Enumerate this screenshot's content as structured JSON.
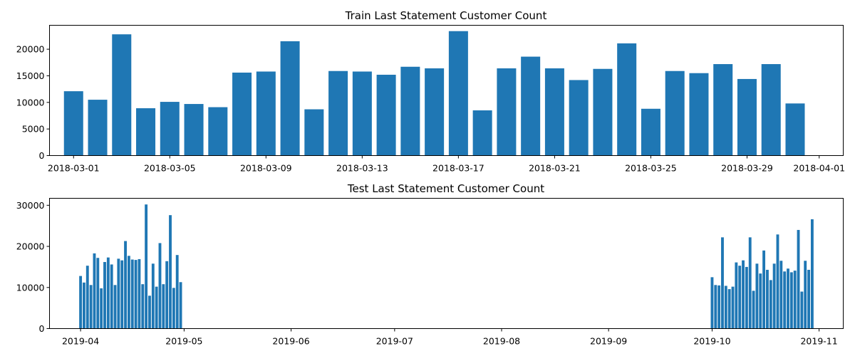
{
  "chart_data": [
    {
      "type": "bar",
      "title": "Train Last Statement Customer Count",
      "xlabel": "",
      "ylabel": "",
      "x_type": "date",
      "xlim": [
        "2018-02-28",
        "2018-04-02"
      ],
      "ylim": [
        0,
        24500
      ],
      "xticks": [
        "2018-03-01",
        "2018-03-05",
        "2018-03-09",
        "2018-03-13",
        "2018-03-17",
        "2018-03-21",
        "2018-03-25",
        "2018-03-29",
        "2018-04-01"
      ],
      "yticks": [
        0,
        5000,
        10000,
        15000,
        20000
      ],
      "x": [
        "2018-03-01",
        "2018-03-02",
        "2018-03-03",
        "2018-03-04",
        "2018-03-05",
        "2018-03-06",
        "2018-03-07",
        "2018-03-08",
        "2018-03-09",
        "2018-03-10",
        "2018-03-11",
        "2018-03-12",
        "2018-03-13",
        "2018-03-14",
        "2018-03-15",
        "2018-03-16",
        "2018-03-17",
        "2018-03-18",
        "2018-03-19",
        "2018-03-20",
        "2018-03-21",
        "2018-03-22",
        "2018-03-23",
        "2018-03-24",
        "2018-03-25",
        "2018-03-26",
        "2018-03-27",
        "2018-03-28",
        "2018-03-29",
        "2018-03-30",
        "2018-03-31"
      ],
      "values": [
        12100,
        10500,
        22800,
        8900,
        10100,
        9700,
        9100,
        15600,
        15800,
        21500,
        8700,
        15900,
        15800,
        15200,
        16700,
        16400,
        23400,
        8500,
        16400,
        18600,
        16400,
        14200,
        16300,
        21100,
        8800,
        15900,
        15500,
        17200,
        14400,
        17200,
        9800
      ],
      "grid": false
    },
    {
      "type": "bar",
      "title": "Test Last Statement Customer Count",
      "xlabel": "",
      "ylabel": "",
      "x_type": "date",
      "xlim": [
        "2019-03-23",
        "2019-11-08"
      ],
      "ylim": [
        0,
        31700
      ],
      "xticks": [
        "2019-04",
        "2019-05",
        "2019-06",
        "2019-07",
        "2019-08",
        "2019-09",
        "2019-10",
        "2019-11"
      ],
      "yticks": [
        0,
        10000,
        20000,
        30000
      ],
      "x": [
        "2019-04-01",
        "2019-04-02",
        "2019-04-03",
        "2019-04-04",
        "2019-04-05",
        "2019-04-06",
        "2019-04-07",
        "2019-04-08",
        "2019-04-09",
        "2019-04-10",
        "2019-04-11",
        "2019-04-12",
        "2019-04-13",
        "2019-04-14",
        "2019-04-15",
        "2019-04-16",
        "2019-04-17",
        "2019-04-18",
        "2019-04-19",
        "2019-04-20",
        "2019-04-21",
        "2019-04-22",
        "2019-04-23",
        "2019-04-24",
        "2019-04-25",
        "2019-04-26",
        "2019-04-27",
        "2019-04-28",
        "2019-04-29",
        "2019-04-30",
        "2019-10-01",
        "2019-10-02",
        "2019-10-03",
        "2019-10-04",
        "2019-10-05",
        "2019-10-06",
        "2019-10-07",
        "2019-10-08",
        "2019-10-09",
        "2019-10-10",
        "2019-10-11",
        "2019-10-12",
        "2019-10-13",
        "2019-10-14",
        "2019-10-15",
        "2019-10-16",
        "2019-10-17",
        "2019-10-18",
        "2019-10-19",
        "2019-10-20",
        "2019-10-21",
        "2019-10-22",
        "2019-10-23",
        "2019-10-24",
        "2019-10-25",
        "2019-10-26",
        "2019-10-27",
        "2019-10-28",
        "2019-10-29",
        "2019-10-30",
        "2019-10-31"
      ],
      "values": [
        12800,
        11200,
        15300,
        10600,
        18300,
        17200,
        9800,
        16200,
        17300,
        15600,
        10600,
        17000,
        16600,
        21300,
        17700,
        16800,
        16700,
        16900,
        10800,
        30200,
        8000,
        15800,
        10200,
        20800,
        10800,
        16400,
        27600,
        9900,
        17900,
        11300,
        12500,
        10600,
        10500,
        22200,
        10400,
        9600,
        10200,
        16100,
        15300,
        16600,
        15000,
        22200,
        9200,
        15800,
        13400,
        19000,
        14300,
        11800,
        15800,
        22900,
        16500,
        13900,
        14600,
        13700,
        14100,
        24000,
        9000,
        16500,
        14300,
        26600,
        0
      ],
      "grid": false
    }
  ]
}
